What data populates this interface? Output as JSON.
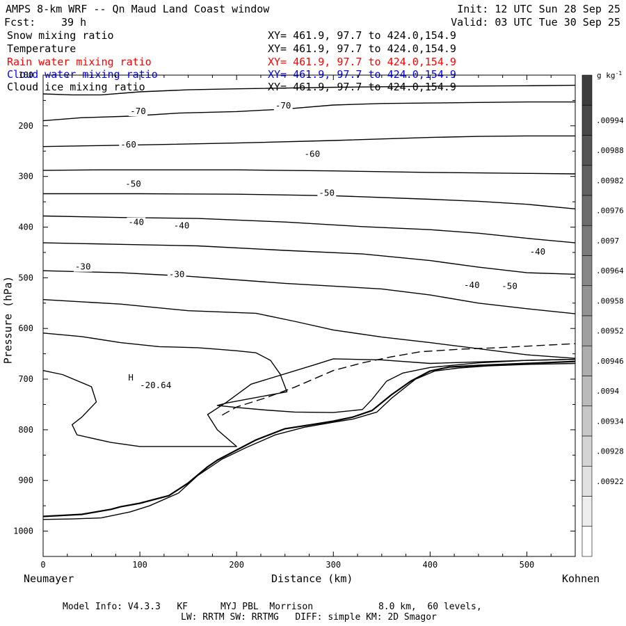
{
  "header": {
    "title": "AMPS 8-km WRF -- Qn Maud Land Coast window",
    "forecast_label": "Fcst:",
    "forecast_hours": "39 h",
    "init": "Init: 12 UTC Sun 28 Sep 25",
    "valid": "Valid: 03 UTC Tue 30 Sep 25"
  },
  "fields": [
    {
      "name": "Snow mixing ratio",
      "xy": "XY= 461.9, 97.7 to 424.0,154.9",
      "color": "#000000"
    },
    {
      "name": "Temperature",
      "xy": "XY= 461.9, 97.7 to 424.0,154.9",
      "color": "#000000"
    },
    {
      "name": "Rain water mixing ratio",
      "xy": "XY= 461.9, 97.7 to 424.0,154.9",
      "color": "#ff0000"
    },
    {
      "name": "Cloud water mixing ratio",
      "xy": "XY= 461.9, 97.7 to 424.0,154.9",
      "color": "#0000ff"
    },
    {
      "name": "Cloud ice mixing ratio",
      "xy": "XY= 461.9, 97.7 to 424.0,154.9",
      "color": "#000000"
    }
  ],
  "footer": {
    "line1": "Model Info: V4.3.3   KF      MYJ PBL  Morrison            8.0 km,  60 levels,",
    "line2": "LW: RRTM SW: RRTMG   DIFF: simple KM: 2D Smagor"
  },
  "chart_data": {
    "type": "contour",
    "xlabel": "Distance (km)",
    "ylabel": "Pressure (hPa)",
    "x_left_label": "Neumayer",
    "x_right_label": "Kohnen",
    "xlim": [
      0,
      550
    ],
    "ylim": [
      1050,
      100
    ],
    "xticks": [
      0,
      100,
      200,
      300,
      400,
      500
    ],
    "yticks": [
      100,
      200,
      300,
      400,
      500,
      600,
      700,
      800,
      900,
      1000
    ],
    "colorbar": {
      "unit": "g kg",
      "unit_exp": "-1",
      "labels": [
        ".00994",
        ".00988",
        ".00982",
        ".00976",
        ".0097",
        ".00964",
        ".00958",
        ".00952",
        ".00946",
        ".0094",
        ".00934",
        ".00928",
        ".00922"
      ],
      "grays": [
        "#3c3c3c",
        "#484848",
        "#555555",
        "#616161",
        "#6d6d6d",
        "#7a7a7a",
        "#878787",
        "#939393",
        "#a0a0a0",
        "#adadad",
        "#bababa",
        "#c7c7c7",
        "#d4d4d4",
        "#e1e1e1",
        "#eeeeee",
        "#ffffff"
      ]
    },
    "isotherms": [
      {
        "points": [
          [
            0,
            137
          ],
          [
            30,
            139
          ],
          [
            60,
            139
          ],
          [
            100,
            133
          ],
          [
            150,
            129
          ],
          [
            200,
            127
          ],
          [
            300,
            124
          ],
          [
            400,
            122
          ],
          [
            500,
            121
          ],
          [
            550,
            120
          ]
        ]
      },
      {
        "points": [
          [
            0,
            190
          ],
          [
            40,
            184
          ],
          [
            90,
            181
          ],
          [
            140,
            175
          ],
          [
            200,
            172
          ],
          [
            250,
            167
          ],
          [
            300,
            159
          ],
          [
            350,
            156
          ],
          [
            400,
            155
          ],
          [
            450,
            154
          ],
          [
            500,
            153
          ],
          [
            550,
            153
          ]
        ]
      },
      {
        "points": [
          [
            0,
            241
          ],
          [
            60,
            239
          ],
          [
            120,
            237
          ],
          [
            200,
            234
          ],
          [
            300,
            229
          ],
          [
            400,
            223
          ],
          [
            450,
            221
          ],
          [
            500,
            220
          ],
          [
            550,
            220
          ]
        ]
      },
      {
        "points": [
          [
            0,
            288
          ],
          [
            60,
            287
          ],
          [
            120,
            287
          ],
          [
            200,
            287
          ],
          [
            300,
            289
          ],
          [
            400,
            292
          ],
          [
            450,
            293
          ],
          [
            500,
            294
          ],
          [
            550,
            295
          ]
        ]
      },
      {
        "points": [
          [
            0,
            334
          ],
          [
            100,
            334
          ],
          [
            200,
            335
          ],
          [
            300,
            338
          ],
          [
            400,
            345
          ],
          [
            450,
            349
          ],
          [
            500,
            355
          ],
          [
            550,
            364
          ]
        ]
      },
      {
        "points": [
          [
            0,
            378
          ],
          [
            80,
            381
          ],
          [
            160,
            383
          ],
          [
            250,
            390
          ],
          [
            330,
            399
          ],
          [
            400,
            405
          ],
          [
            450,
            412
          ],
          [
            500,
            422
          ],
          [
            550,
            431
          ]
        ]
      },
      {
        "points": [
          [
            0,
            431
          ],
          [
            80,
            434
          ],
          [
            160,
            437
          ],
          [
            250,
            446
          ],
          [
            330,
            453
          ],
          [
            400,
            466
          ],
          [
            450,
            479
          ],
          [
            500,
            490
          ],
          [
            550,
            493
          ]
        ]
      },
      {
        "points": [
          [
            0,
            486
          ],
          [
            80,
            490
          ],
          [
            150,
            497
          ],
          [
            250,
            511
          ],
          [
            350,
            522
          ],
          [
            400,
            534
          ],
          [
            450,
            550
          ],
          [
            500,
            561
          ],
          [
            550,
            571
          ]
        ]
      },
      {
        "points": [
          [
            0,
            543
          ],
          [
            80,
            552
          ],
          [
            150,
            565
          ],
          [
            220,
            570
          ],
          [
            260,
            586
          ],
          [
            300,
            603
          ],
          [
            350,
            617
          ],
          [
            400,
            628
          ],
          [
            450,
            640
          ],
          [
            500,
            652
          ],
          [
            550,
            659
          ]
        ]
      },
      {
        "points": [
          [
            0,
            609
          ],
          [
            40,
            616
          ],
          [
            80,
            628
          ],
          [
            120,
            636
          ],
          [
            160,
            638
          ],
          [
            180,
            641
          ],
          [
            200,
            644
          ],
          [
            220,
            648
          ],
          [
            235,
            663
          ],
          [
            245,
            690
          ],
          [
            252,
            725
          ],
          [
            190,
            747
          ],
          [
            180,
            752
          ],
          [
            200,
            756
          ],
          [
            230,
            761
          ],
          [
            260,
            765
          ],
          [
            300,
            766
          ],
          [
            330,
            760
          ],
          [
            340,
            740
          ],
          [
            355,
            704
          ],
          [
            372,
            688
          ],
          [
            400,
            677
          ],
          [
            450,
            668
          ],
          [
            500,
            663
          ],
          [
            550,
            661
          ]
        ]
      },
      {
        "points": [
          [
            0,
            683
          ],
          [
            20,
            691
          ],
          [
            50,
            715
          ],
          [
            55,
            745
          ],
          [
            40,
            775
          ],
          [
            30,
            790
          ],
          [
            35,
            810
          ],
          [
            70,
            825
          ],
          [
            100,
            833
          ],
          [
            200,
            833
          ],
          [
            180,
            800
          ],
          [
            170,
            770
          ],
          [
            190,
            745
          ],
          [
            215,
            710
          ],
          [
            280,
            672
          ],
          [
            300,
            660
          ],
          [
            350,
            662
          ],
          [
            400,
            669
          ],
          [
            450,
            666
          ],
          [
            500,
            663
          ],
          [
            550,
            661
          ]
        ]
      },
      {
        "points": [
          [
            0,
            971
          ],
          [
            40,
            967
          ],
          [
            70,
            957
          ],
          [
            80,
            952
          ],
          [
            100,
            945
          ],
          [
            130,
            930
          ],
          [
            150,
            905
          ],
          [
            170,
            873
          ],
          [
            180,
            860
          ],
          [
            200,
            840
          ],
          [
            220,
            820
          ],
          [
            250,
            798
          ],
          [
            280,
            789
          ],
          [
            300,
            783
          ],
          [
            320,
            775
          ],
          [
            340,
            762
          ],
          [
            360,
            731
          ],
          [
            380,
            704
          ],
          [
            400,
            684
          ],
          [
            420,
            676
          ],
          [
            450,
            673
          ],
          [
            500,
            669
          ],
          [
            550,
            665
          ]
        ],
        "width": 2.2
      },
      {
        "points": [
          [
            0,
            977
          ],
          [
            30,
            976
          ],
          [
            60,
            974
          ],
          [
            70,
            970
          ],
          [
            90,
            962
          ],
          [
            110,
            950
          ],
          [
            140,
            925
          ],
          [
            160,
            890
          ],
          [
            185,
            858
          ],
          [
            210,
            835
          ],
          [
            240,
            810
          ],
          [
            270,
            795
          ],
          [
            300,
            785
          ],
          [
            320,
            779
          ],
          [
            345,
            765
          ],
          [
            360,
            738
          ],
          [
            385,
            700
          ],
          [
            405,
            684
          ],
          [
            430,
            678
          ],
          [
            460,
            674
          ],
          [
            500,
            671
          ],
          [
            550,
            669
          ]
        ]
      }
    ],
    "ice_dashed": {
      "points": [
        [
          185,
          771
        ],
        [
          200,
          755
        ],
        [
          230,
          737
        ],
        [
          260,
          716
        ],
        [
          300,
          683
        ],
        [
          330,
          668
        ],
        [
          360,
          656
        ],
        [
          390,
          646
        ],
        [
          430,
          641
        ],
        [
          470,
          638
        ],
        [
          500,
          635
        ],
        [
          520,
          633
        ],
        [
          540,
          631
        ],
        [
          550,
          630
        ]
      ]
    },
    "labels": [
      {
        "text": "-70",
        "x": 90,
        "y": 177
      },
      {
        "text": "-70",
        "x": 240,
        "y": 166
      },
      {
        "text": "-60",
        "x": 80,
        "y": 243
      },
      {
        "text": "-60",
        "x": 270,
        "y": 261
      },
      {
        "text": "-50",
        "x": 85,
        "y": 320
      },
      {
        "text": "-50",
        "x": 285,
        "y": 338
      },
      {
        "text": "-40",
        "x": 88,
        "y": 396
      },
      {
        "text": "-40",
        "x": 135,
        "y": 403
      },
      {
        "text": "-40",
        "x": 503,
        "y": 454
      },
      {
        "text": "-30",
        "x": 33,
        "y": 484
      },
      {
        "text": "-30",
        "x": 130,
        "y": 499
      },
      {
        "text": "-40",
        "x": 435,
        "y": 520
      },
      {
        "text": "-50",
        "x": 474,
        "y": 522
      },
      {
        "text": "H",
        "x": 88,
        "y": 703
      },
      {
        "text": "-20.64",
        "x": 100,
        "y": 718
      }
    ]
  }
}
